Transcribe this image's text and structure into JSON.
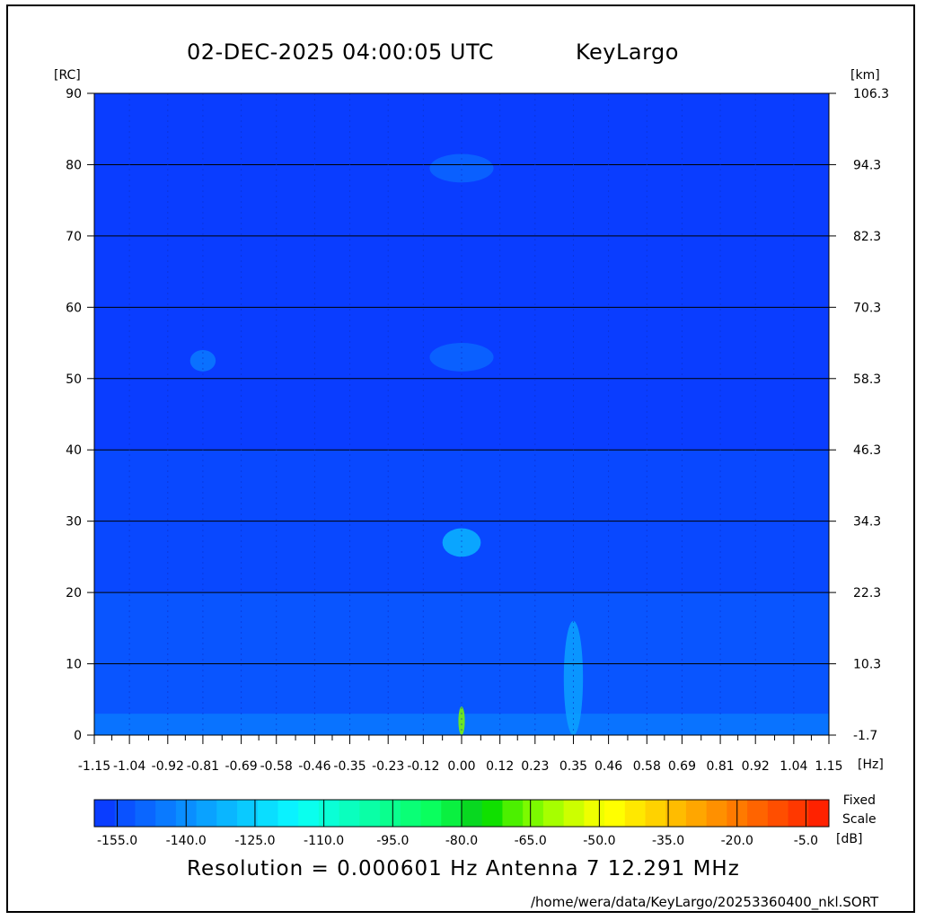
{
  "header": {
    "datetime": "02-DEC-2025 04:00:05 UTC",
    "site": "KeyLargo"
  },
  "units": {
    "left": "[RC]",
    "right": "[km]",
    "x": "[Hz]",
    "colorbar": "[dB]"
  },
  "colorbar_note": [
    "Fixed",
    "Scale"
  ],
  "footer": {
    "resolution": "Resolution = 0.000601 Hz   Antenna  7   12.291 MHz",
    "path": "/home/wera/data/KeyLargo/20253360400_nkl.SORT"
  },
  "colors": {
    "background": "#0f3df2",
    "grid": "#000000"
  },
  "chart_data": {
    "type": "heatmap",
    "title": "02-DEC-2025 04:00:05 UTC       KeyLargo",
    "xlabel": "[Hz]",
    "ylabel": "[RC]",
    "ylabel_right": "[km]",
    "xlim": [
      -1.15,
      1.15
    ],
    "ylim": [
      0,
      90
    ],
    "x_ticks": [
      "-1.15",
      "-1.04",
      "-0.92",
      "-0.81",
      "-0.69",
      "-0.58",
      "-0.46",
      "-0.35",
      "-0.23",
      "-0.12",
      "0.00",
      "0.12",
      "0.23",
      "0.35",
      "0.46",
      "0.58",
      "0.69",
      "0.81",
      "0.92",
      "1.04",
      "1.15"
    ],
    "y_ticks": [
      0,
      10,
      20,
      30,
      40,
      50,
      60,
      70,
      80,
      90
    ],
    "y_ticks_right": [
      "-1.7",
      "10.3",
      "22.3",
      "34.3",
      "46.3",
      "58.3",
      "70.3",
      "82.3",
      "94.3",
      "106.3"
    ],
    "grid": true,
    "colorbar": {
      "labels": [
        "-155.0",
        "-140.0",
        "-125.0",
        "-110.0",
        "-95.0",
        "-80.0",
        "-65.0",
        "-50.0",
        "-35.0",
        "-20.0",
        "-5.0"
      ],
      "range": [
        -160,
        0
      ],
      "unit": "[dB]",
      "colors": [
        "#0a3dff",
        "#0a52ff",
        "#0a66ff",
        "#0a7aff",
        "#0a8eff",
        "#0aa2ff",
        "#0ab6ff",
        "#0acaff",
        "#0adeff",
        "#0af2ff",
        "#0affee",
        "#0affd6",
        "#0affbe",
        "#0affa6",
        "#0aff8e",
        "#0aff76",
        "#0aff5e",
        "#0af040",
        "#08d820",
        "#10e000",
        "#4cf000",
        "#7cfa00",
        "#a6ff00",
        "#ccff00",
        "#eeff00",
        "#ffff00",
        "#ffe800",
        "#ffd200",
        "#ffbc00",
        "#ffa600",
        "#ff9000",
        "#ff7a00",
        "#ff6400",
        "#ff4e00",
        "#ff3800",
        "#ff2200"
      ]
    },
    "background_level_db": -157,
    "features": [
      {
        "x": 0.0,
        "y": 79.5,
        "width_hz": 0.1,
        "height_rc": 4,
        "level_db": -147
      },
      {
        "x": 0.0,
        "y": 53.0,
        "width_hz": 0.1,
        "height_rc": 4,
        "level_db": -147
      },
      {
        "x": -0.81,
        "y": 52.5,
        "width_hz": 0.04,
        "height_rc": 3,
        "level_db": -145
      },
      {
        "x": 0.0,
        "y": 27.0,
        "width_hz": 0.06,
        "height_rc": 4,
        "level_db": -130
      },
      {
        "x": 0.35,
        "y": 8.0,
        "width_hz": 0.03,
        "height_rc": 16,
        "level_db": -135
      },
      {
        "x": 0.0,
        "y": 2.0,
        "width_hz": 0.01,
        "height_rc": 4,
        "level_db": -65
      }
    ]
  }
}
